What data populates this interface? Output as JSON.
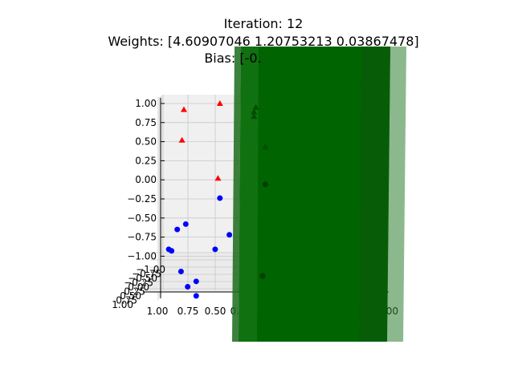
{
  "chart_data": {
    "type": "scatter",
    "title_lines": [
      "Iteration: 12",
      "Weights: [4.60907046 1.20753213 0.03867478]",
      "Bias: [-0."
    ],
    "title_bias_tail": "0",
    "z_ticks": [
      "1.00",
      "0.75",
      "0.50",
      "0.25",
      "0.00",
      "−0.25",
      "−0.50",
      "−0.75",
      "−1.00"
    ],
    "z_range": [
      -1.0,
      1.0
    ],
    "x_ticks": [
      "1.00",
      "0.75",
      "0.50",
      "0.25"
    ],
    "x_tick_right": ".75 1.00",
    "y_ticks_stacked": [
      "−1.00",
      "−0.75",
      "−0.50",
      "−0.25",
      "0.00",
      "0.25",
      "0.50",
      "0.75",
      "1.00"
    ],
    "series": [
      {
        "marker": "triangle",
        "color": "#ff0000",
        "points": [
          {
            "u": 0.22,
            "z": 0.92
          },
          {
            "u": 0.6,
            "z": 1.0
          },
          {
            "u": 0.2,
            "z": 0.52
          },
          {
            "u": 0.58,
            "z": 0.02
          }
        ]
      },
      {
        "marker": "circle",
        "color": "#0000ff",
        "points": [
          {
            "u": 0.6,
            "z": -0.24
          },
          {
            "u": 0.24,
            "z": -0.58
          },
          {
            "u": 0.15,
            "z": -0.65
          },
          {
            "u": 0.7,
            "z": -0.72
          },
          {
            "u": 0.55,
            "z": -0.91
          },
          {
            "u": 0.06,
            "z": -0.91
          },
          {
            "u": 0.09,
            "z": -0.93
          },
          {
            "u": 0.19,
            "z": -1.2
          },
          {
            "u": 0.35,
            "z": -1.33
          },
          {
            "u": 0.26,
            "z": -1.4
          },
          {
            "u": 0.35,
            "z": -1.52
          }
        ]
      },
      {
        "marker": "triangle",
        "color": "#004d00",
        "points": [
          {
            "u": 0.98,
            "z": 0.95
          },
          {
            "u": 0.96,
            "z": 0.89
          },
          {
            "u": 0.96,
            "z": 0.83
          },
          {
            "u": 1.08,
            "z": 0.43
          }
        ]
      },
      {
        "marker": "circle",
        "color": "#003d00",
        "points": [
          {
            "u": 1.08,
            "z": -0.06
          },
          {
            "u": 1.05,
            "z": -1.26
          }
        ]
      }
    ],
    "plane_color": "#006400",
    "grid": true
  }
}
